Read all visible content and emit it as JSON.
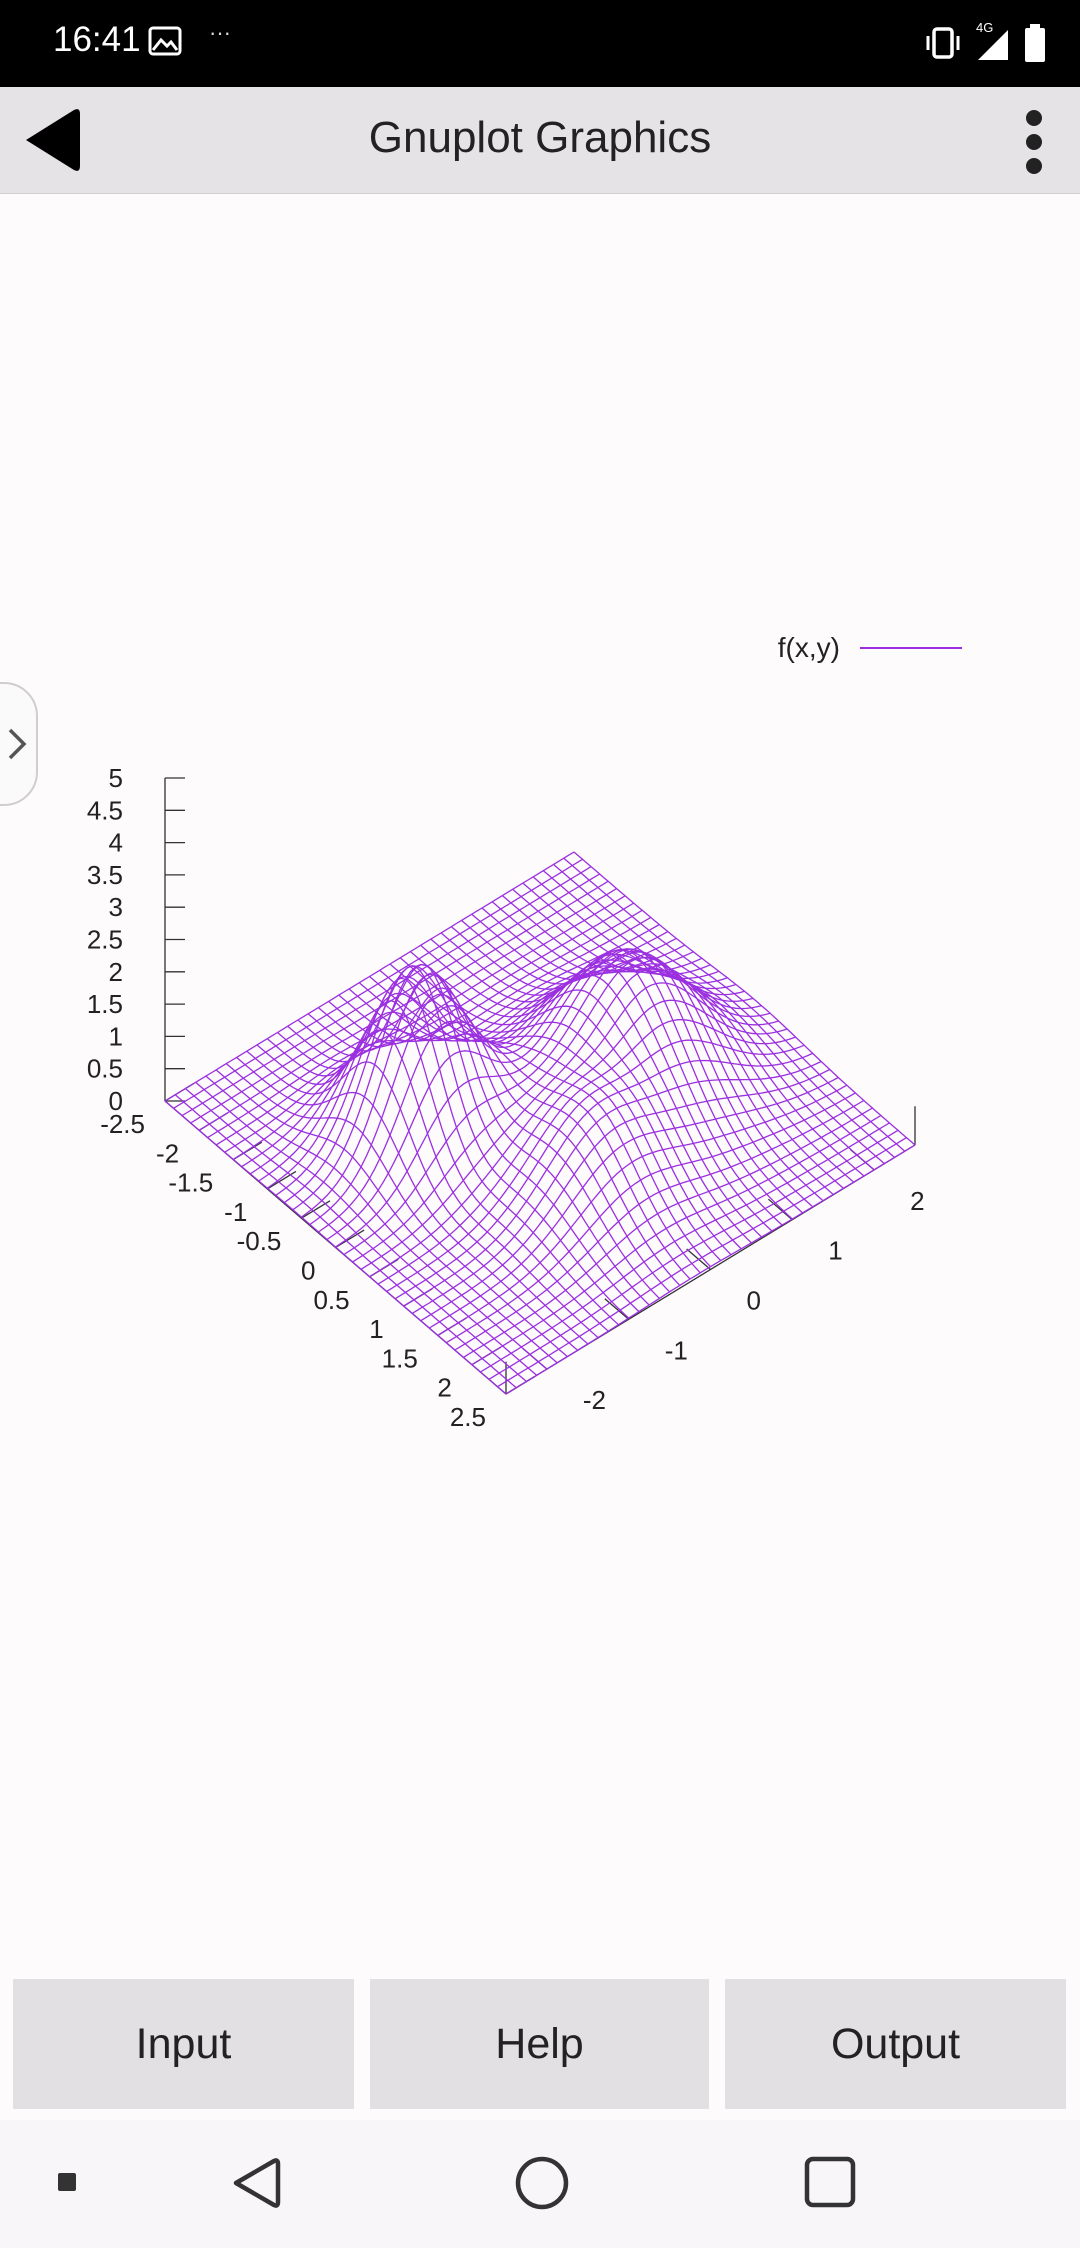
{
  "status_bar": {
    "time": "16:41",
    "overflow": "···",
    "network": "4G"
  },
  "app_bar": {
    "title": "Gnuplot Graphics",
    "back_icon": "back-arrow-icon",
    "menu_icon": "more-vert-icon"
  },
  "legend": {
    "label": "f(x,y)",
    "color": "#9b30e0"
  },
  "chart_data": {
    "type": "surface",
    "series": [
      {
        "name": "f(x,y)",
        "color": "#9b30e0"
      }
    ],
    "zlim": [
      0,
      5
    ],
    "z_ticks": [
      "5",
      "4.5",
      "4",
      "3.5",
      "3",
      "2.5",
      "2",
      "1.5",
      "1",
      "0.5",
      "0"
    ],
    "x_ticks": [
      "-2.5",
      "-2",
      "-1.5",
      "-1",
      "-0.5",
      "0",
      "0.5",
      "1",
      "1.5",
      "2",
      "2.5"
    ],
    "y_ticks": [
      "-2",
      "-1",
      "0",
      "1",
      "2"
    ],
    "xlim": [
      -2.5,
      2.5
    ],
    "ylim": [
      -2.5,
      2.5
    ]
  },
  "buttons": {
    "input": "Input",
    "help": "Help",
    "output": "Output"
  },
  "nav": {
    "back_icon": "nav-back-icon",
    "home_icon": "nav-home-icon",
    "recents_icon": "nav-recents-icon"
  }
}
